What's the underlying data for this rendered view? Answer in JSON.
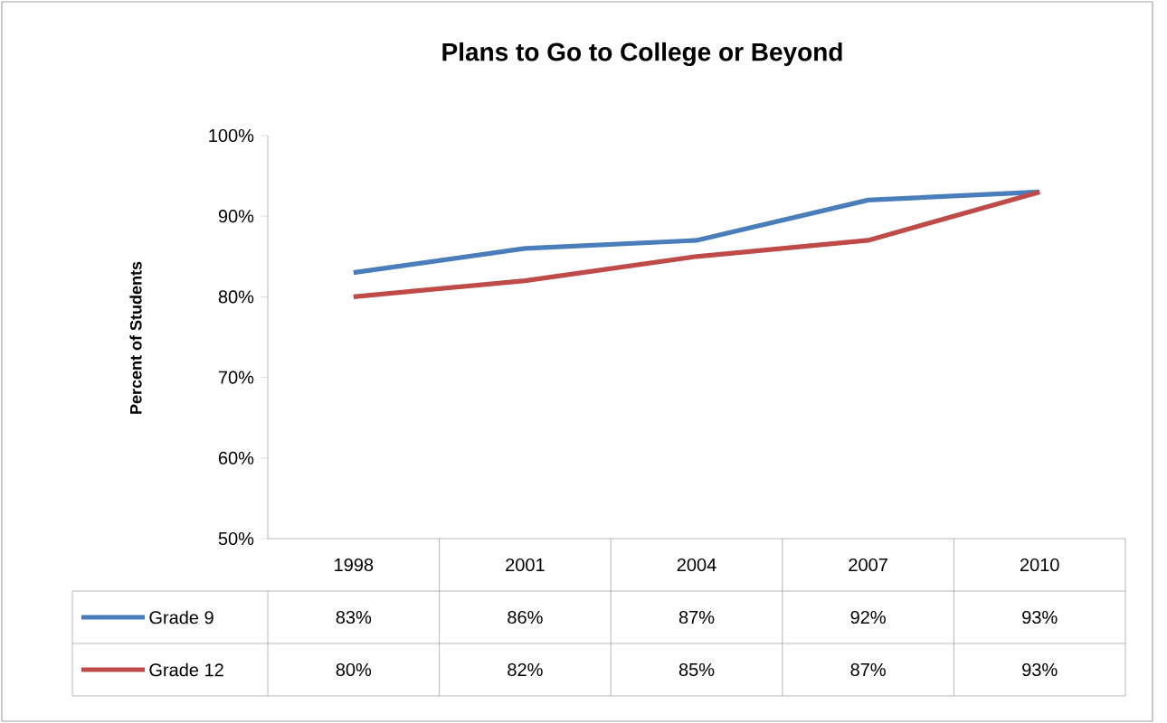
{
  "chart_data": {
    "type": "line",
    "title": "Plans to Go to College or Beyond",
    "ylabel": "Percent of Students",
    "categories": [
      "1998",
      "2001",
      "2004",
      "2007",
      "2010"
    ],
    "series": [
      {
        "name": "Grade 9",
        "color": "#4a7ebb",
        "values": [
          83,
          86,
          87,
          92,
          93
        ],
        "value_labels": [
          "83%",
          "86%",
          "87%",
          "92%",
          "93%"
        ]
      },
      {
        "name": "Grade 12",
        "color": "#be4b48",
        "values": [
          80,
          82,
          85,
          87,
          93
        ],
        "value_labels": [
          "80%",
          "82%",
          "85%",
          "87%",
          "93%"
        ]
      }
    ],
    "ylim": [
      50,
      100
    ],
    "yticks": [
      {
        "value": 50,
        "label": "50%"
      },
      {
        "value": 60,
        "label": "60%"
      },
      {
        "value": 70,
        "label": "70%"
      },
      {
        "value": 80,
        "label": "80%"
      },
      {
        "value": 90,
        "label": "90%"
      },
      {
        "value": 100,
        "label": "100%"
      }
    ],
    "legend": "bottom",
    "marker": "none",
    "line_style": "solid"
  }
}
